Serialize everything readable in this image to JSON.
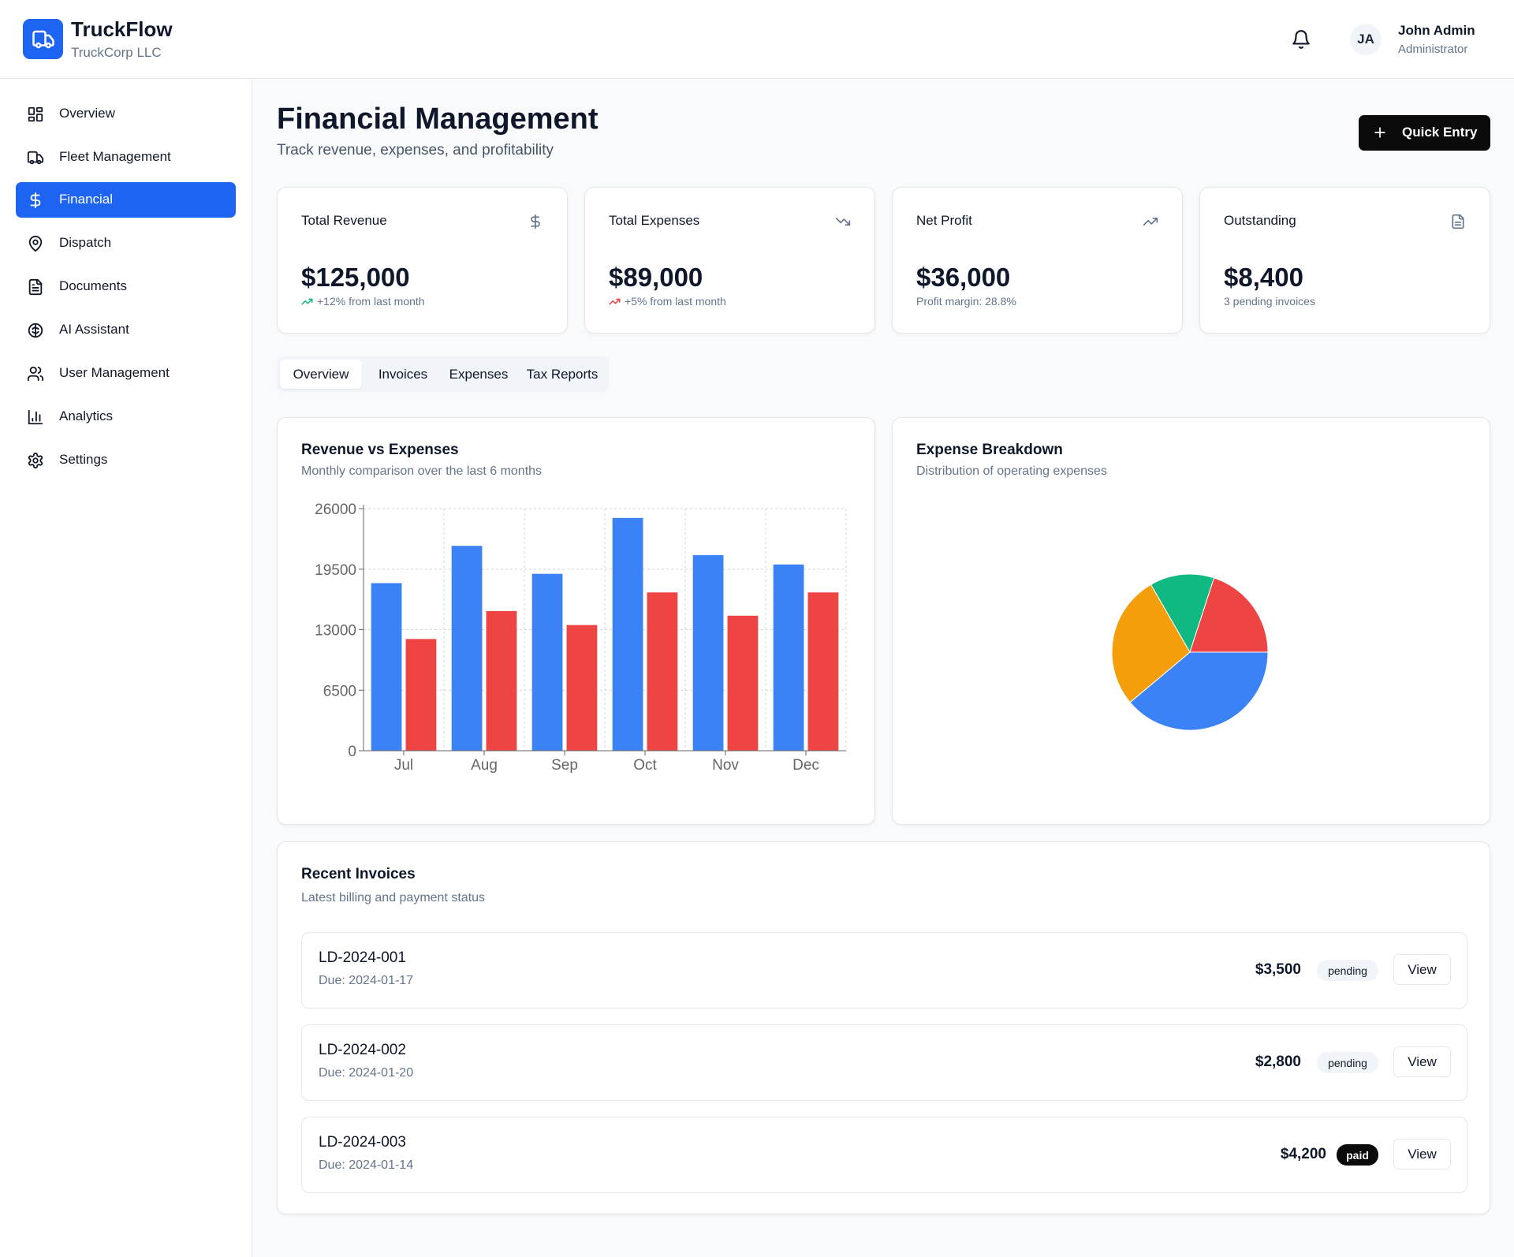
{
  "app": {
    "name": "TruckFlow",
    "org": "TruckCorp LLC"
  },
  "user": {
    "initials": "JA",
    "name": "John Admin",
    "role": "Administrator"
  },
  "sidebar": {
    "items": [
      {
        "label": "Overview",
        "icon": "grid-icon"
      },
      {
        "label": "Fleet Management",
        "icon": "truck-icon"
      },
      {
        "label": "Financial",
        "icon": "dollar-icon",
        "active": true
      },
      {
        "label": "Dispatch",
        "icon": "map-pin-icon"
      },
      {
        "label": "Documents",
        "icon": "file-text-icon"
      },
      {
        "label": "AI Assistant",
        "icon": "brain-icon"
      },
      {
        "label": "User Management",
        "icon": "users-icon"
      },
      {
        "label": "Analytics",
        "icon": "bar-chart-icon"
      },
      {
        "label": "Settings",
        "icon": "gear-icon"
      }
    ]
  },
  "page": {
    "title": "Financial Management",
    "subtitle": "Track revenue, expenses, and profitability",
    "quick_entry_label": "Quick Entry"
  },
  "stats": [
    {
      "title": "Total Revenue",
      "value": "$125,000",
      "note": "+12% from last month",
      "icon": "dollar-icon",
      "trend": "up-green"
    },
    {
      "title": "Total Expenses",
      "value": "$89,000",
      "note": "+5% from last month",
      "icon": "trending-down-icon",
      "trend": "up-red"
    },
    {
      "title": "Net Profit",
      "value": "$36,000",
      "note": "Profit margin: 28.8%",
      "icon": "trending-up-icon"
    },
    {
      "title": "Outstanding",
      "value": "$8,400",
      "note": "3 pending invoices",
      "icon": "file-icon"
    }
  ],
  "tabs": [
    "Overview",
    "Invoices",
    "Expenses",
    "Tax Reports"
  ],
  "revenue_panel": {
    "title": "Revenue vs Expenses",
    "subtitle": "Monthly comparison over the last 6 months"
  },
  "expense_panel": {
    "title": "Expense Breakdown",
    "subtitle": "Distribution of operating expenses"
  },
  "invoices_panel": {
    "title": "Recent Invoices",
    "subtitle": "Latest billing and payment status",
    "view_label": "View",
    "rows": [
      {
        "id": "LD-2024-001",
        "due": "Due: 2024-01-17",
        "amount": "$3,500",
        "status": "pending"
      },
      {
        "id": "LD-2024-002",
        "due": "Due: 2024-01-20",
        "amount": "$2,800",
        "status": "pending"
      },
      {
        "id": "LD-2024-003",
        "due": "Due: 2024-01-14",
        "amount": "$4,200",
        "status": "paid"
      }
    ]
  },
  "colors": {
    "accent": "#1d64f3",
    "revenue": "#3b82f6",
    "expenses": "#ef4444",
    "green": "#10b981",
    "amber": "#f59e0b"
  },
  "chart_data": [
    {
      "type": "bar",
      "categories": [
        "Jul",
        "Aug",
        "Sep",
        "Oct",
        "Nov",
        "Dec"
      ],
      "series": [
        {
          "values": [
            18000,
            22000,
            19000,
            25000,
            21000,
            20000
          ],
          "color": "#3b82f6"
        },
        {
          "values": [
            12000,
            15000,
            13500,
            17000,
            14500,
            17000
          ],
          "color": "#ef4444"
        }
      ],
      "yticks": [
        0,
        6500,
        13000,
        19500,
        26000
      ],
      "ylim": [
        0,
        26000
      ],
      "grid": true
    },
    {
      "type": "pie",
      "slices": [
        {
          "value": 35,
          "color": "#3b82f6"
        },
        {
          "value": 25,
          "color": "#f59e0b"
        },
        {
          "value": 12,
          "color": "#10b981"
        },
        {
          "value": 18,
          "color": "#ef4444"
        }
      ]
    }
  ]
}
